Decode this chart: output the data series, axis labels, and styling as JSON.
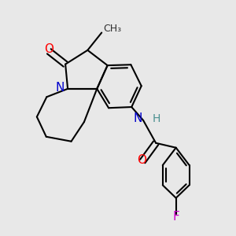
{
  "background_color": "#e8e8e8",
  "bond_color": "#000000",
  "figsize": [
    3.0,
    3.0
  ],
  "dpi": 100,
  "colors": {
    "O": "#ff0000",
    "N": "#0000cc",
    "H": "#4a9090",
    "F": "#cc00cc",
    "C": "#303030",
    "bond": "#000000"
  }
}
